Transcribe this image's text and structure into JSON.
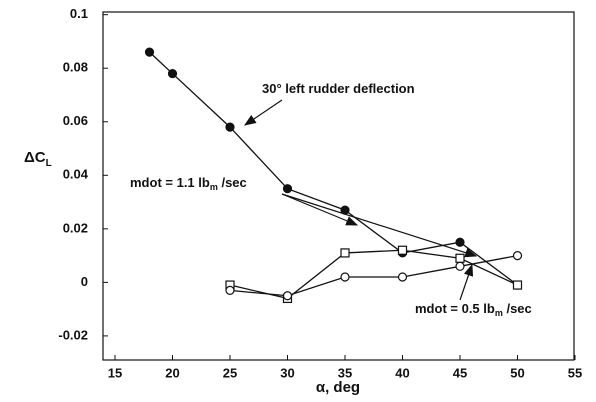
{
  "chart_data": {
    "type": "line",
    "xlabel": "α, deg",
    "ylabel": {
      "main": "ΔC",
      "sub": "L"
    },
    "xlim": [
      15,
      55
    ],
    "xticks": [
      15,
      20,
      25,
      30,
      35,
      40,
      45,
      50,
      55
    ],
    "ylim": [
      -0.029,
      0.101
    ],
    "yticks": [
      -0.02,
      0,
      0.02,
      0.04,
      0.06,
      0.08,
      0.1
    ],
    "series": [
      {
        "marker": "filled-circle",
        "color": "#111",
        "x": [
          18,
          20,
          25,
          30,
          35,
          40,
          45,
          50
        ],
        "values": [
          0.086,
          0.078,
          0.058,
          0.035,
          0.027,
          0.011,
          0.015,
          -0.001
        ]
      },
      {
        "marker": "open-square",
        "color": "#111",
        "x": [
          25,
          30,
          35,
          40,
          45,
          50
        ],
        "values": [
          -0.001,
          -0.006,
          0.011,
          0.012,
          0.009,
          -0.001
        ]
      },
      {
        "marker": "open-circle",
        "color": "#111",
        "x": [
          25,
          30,
          35,
          40,
          45,
          50
        ],
        "values": [
          -0.003,
          -0.005,
          0.002,
          0.002,
          0.006,
          0.01
        ]
      }
    ],
    "annotations": [
      {
        "text": "30° left rudder deflection"
      },
      {
        "text": "mdot = 1.1 lb",
        "sub": "m",
        "rest": " /sec"
      },
      {
        "text": "mdot = 0.5 lb",
        "sub": "m",
        "rest": " /sec"
      }
    ]
  }
}
